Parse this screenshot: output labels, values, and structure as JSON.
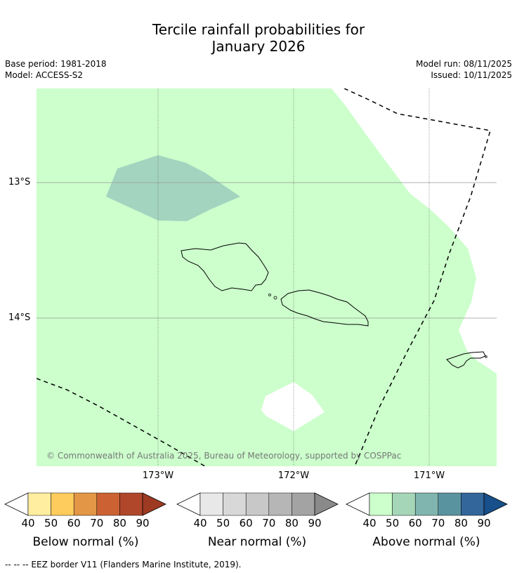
{
  "title_line1": "Tercile rainfall probabilities for",
  "title_line2": "January 2026",
  "base_period": "Base period: 1981-2018",
  "model": "Model: ACCESS-S2",
  "model_run": "Model run: 08/11/2025",
  "issued": "Issued: 10/11/2025",
  "copyright": "© Commonwealth of Australia 2025, Bureau of Meteorology, supported by COSPPac",
  "footnote": "--  --  -- EEZ border V11 (Flanders Marine Institute, 2019).",
  "map": {
    "lat_labels": [
      "13°S",
      "14°S"
    ],
    "lon_labels": [
      "173°W",
      "172°W",
      "171°W"
    ],
    "background_class": "Above normal 40-50%",
    "colors": {
      "above_40_50": "#ccffcc",
      "above_50_60": "#a3d4bf",
      "no_signal": "#ffffff"
    }
  },
  "colorbars": [
    {
      "label": "Below normal (%)",
      "ticks": [
        "40",
        "50",
        "60",
        "70",
        "80",
        "90"
      ],
      "colors": [
        "#ffffff",
        "#ffeda0",
        "#fecc5c",
        "#e39646",
        "#cc6233",
        "#b0472b",
        "#9e3a22"
      ]
    },
    {
      "label": "Near normal (%)",
      "ticks": [
        "40",
        "50",
        "60",
        "70",
        "80",
        "90"
      ],
      "colors": [
        "#ffffff",
        "#e8e8e8",
        "#d8d8d8",
        "#c8c8c8",
        "#b6b6b6",
        "#a3a3a3",
        "#8a8a8a"
      ]
    },
    {
      "label": "Above normal (%)",
      "ticks": [
        "40",
        "50",
        "60",
        "70",
        "80",
        "90"
      ],
      "colors": [
        "#ffffff",
        "#ccffcc",
        "#a5d6b8",
        "#7fb5ae",
        "#5a93a0",
        "#33669a",
        "#17508a"
      ]
    }
  ]
}
